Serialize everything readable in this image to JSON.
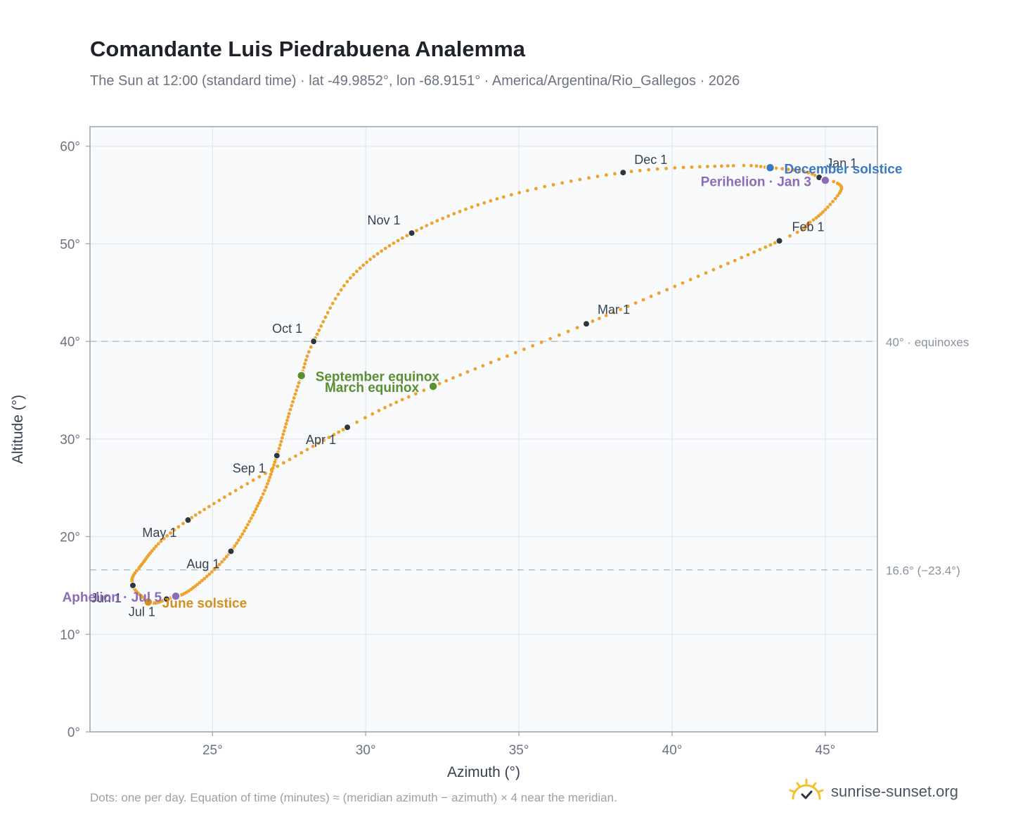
{
  "header": {
    "title": "Comandante Luis Piedrabuena Analemma",
    "subtitle": "The Sun at 12:00 (standard time) · lat -49.9852°, lon -68.9151° · America/Argentina/Rio_Gallegos · 2026"
  },
  "footer": {
    "note": "Dots: one per day. Equation of time (minutes) ≈ (meridian azimuth − azimuth) × 4 near the meridian.",
    "brand": "sunrise-sunset.org",
    "brand_icon": "sun-logo-icon"
  },
  "colors": {
    "curve": "#f0a22a",
    "month_marker": "#2f3640",
    "equinox": "#5a8f32",
    "june_solstice": "#d4901a",
    "december_solstice": "#3b78c4",
    "apsis": "#8c6bb8",
    "reference_line": "#b8bfc7",
    "plot_bg": "#f8fafc"
  },
  "chart_data": {
    "type": "scatter",
    "title": "Comandante Luis Piedrabuena Analemma",
    "xlabel": "Azimuth (°)",
    "ylabel": "Altitude (°)",
    "xlim": [
      21,
      46.7
    ],
    "ylim": [
      0,
      62
    ],
    "x_ticks": [
      25,
      30,
      35,
      40,
      45
    ],
    "x_tick_labels": [
      "25°",
      "30°",
      "35°",
      "40°",
      "45°"
    ],
    "y_ticks": [
      0,
      10,
      20,
      30,
      40,
      50,
      60
    ],
    "y_tick_labels": [
      "0°",
      "10°",
      "20°",
      "30°",
      "40°",
      "50°",
      "60°"
    ],
    "grid": true,
    "reference_lines": [
      {
        "y": 40,
        "label": "40° · equinoxes"
      },
      {
        "y": 16.6,
        "label": "16.6° (−23.4°)"
      }
    ],
    "analemma_anchors": [
      {
        "day": 0,
        "az": 44.8,
        "alt": 56.8
      },
      {
        "day": 4,
        "az": 45.4,
        "alt": 56.2
      },
      {
        "day": 9,
        "az": 45.5,
        "alt": 55.4
      },
      {
        "day": 16,
        "az": 45.0,
        "alt": 53.5
      },
      {
        "day": 22,
        "az": 44.5,
        "alt": 52.2
      },
      {
        "day": 31,
        "az": 43.5,
        "alt": 50.3
      },
      {
        "day": 59,
        "az": 37.2,
        "alt": 41.8
      },
      {
        "day": 78,
        "az": 32.2,
        "alt": 35.4
      },
      {
        "day": 90,
        "az": 29.4,
        "alt": 31.2
      },
      {
        "day": 120,
        "az": 24.2,
        "alt": 21.7
      },
      {
        "day": 140,
        "az": 22.6,
        "alt": 16.8
      },
      {
        "day": 151,
        "az": 22.4,
        "alt": 15.0
      },
      {
        "day": 161,
        "az": 22.8,
        "alt": 13.6
      },
      {
        "day": 171,
        "az": 23.1,
        "alt": 13.2
      },
      {
        "day": 181,
        "az": 23.5,
        "alt": 13.6
      },
      {
        "day": 195,
        "az": 24.3,
        "alt": 14.6
      },
      {
        "day": 212,
        "az": 25.6,
        "alt": 18.5
      },
      {
        "day": 230,
        "az": 26.6,
        "alt": 24.0
      },
      {
        "day": 243,
        "az": 27.1,
        "alt": 28.3
      },
      {
        "day": 255,
        "az": 27.5,
        "alt": 32.6
      },
      {
        "day": 265,
        "az": 27.9,
        "alt": 36.5
      },
      {
        "day": 273,
        "az": 28.3,
        "alt": 40.0
      },
      {
        "day": 288,
        "az": 29.5,
        "alt": 46.5
      },
      {
        "day": 304,
        "az": 31.5,
        "alt": 51.1
      },
      {
        "day": 320,
        "az": 34.5,
        "alt": 54.8
      },
      {
        "day": 334,
        "az": 38.4,
        "alt": 57.3
      },
      {
        "day": 348,
        "az": 42.0,
        "alt": 58.0
      },
      {
        "day": 354,
        "az": 43.2,
        "alt": 57.8
      },
      {
        "day": 360,
        "az": 44.3,
        "alt": 57.4
      },
      {
        "day": 365,
        "az": 44.8,
        "alt": 56.8
      }
    ],
    "month_markers": [
      {
        "label": "Jan 1",
        "az": 44.8,
        "alt": 56.8,
        "anchor": "start",
        "dx": 10,
        "dy": -14
      },
      {
        "label": "Feb 1",
        "az": 43.5,
        "alt": 50.3,
        "anchor": "start",
        "dx": 18,
        "dy": -14
      },
      {
        "label": "Mar 1",
        "az": 37.2,
        "alt": 41.8,
        "anchor": "start",
        "dx": 16,
        "dy": -14
      },
      {
        "label": "Apr 1",
        "az": 29.4,
        "alt": 31.2,
        "anchor": "end",
        "dx": -16,
        "dy": 24
      },
      {
        "label": "May 1",
        "az": 24.2,
        "alt": 21.7,
        "anchor": "end",
        "dx": -16,
        "dy": 24
      },
      {
        "label": "Jun 1",
        "az": 22.4,
        "alt": 15.0,
        "anchor": "end",
        "dx": -16,
        "dy": 24
      },
      {
        "label": "Jul 1",
        "az": 23.5,
        "alt": 13.6,
        "anchor": "end",
        "dx": -16,
        "dy": 24
      },
      {
        "label": "Aug 1",
        "az": 25.6,
        "alt": 18.5,
        "anchor": "end",
        "dx": -16,
        "dy": 24
      },
      {
        "label": "Sep 1",
        "az": 27.1,
        "alt": 28.3,
        "anchor": "end",
        "dx": -16,
        "dy": 24
      },
      {
        "label": "Oct 1",
        "az": 28.3,
        "alt": 40.0,
        "anchor": "end",
        "dx": -16,
        "dy": -12
      },
      {
        "label": "Nov 1",
        "az": 31.5,
        "alt": 51.1,
        "anchor": "end",
        "dx": -16,
        "dy": -12
      },
      {
        "label": "Dec 1",
        "az": 38.4,
        "alt": 57.3,
        "anchor": "start",
        "dx": 16,
        "dy": -12
      }
    ],
    "events": [
      {
        "label": "December solstice",
        "az": 43.2,
        "alt": 57.8,
        "color": "#3b78c4",
        "anchor": "start",
        "dx": 20,
        "dy": 8
      },
      {
        "label": "Perihelion · Jan 3",
        "az": 45.0,
        "alt": 56.5,
        "color": "#8c6bb8",
        "anchor": "end",
        "dx": -20,
        "dy": 8
      },
      {
        "label": "September equinox",
        "az": 27.9,
        "alt": 36.5,
        "color": "#5a8f32",
        "anchor": "start",
        "dx": 20,
        "dy": 8
      },
      {
        "label": "March equinox",
        "az": 32.2,
        "alt": 35.4,
        "color": "#5a8f32",
        "anchor": "end",
        "dx": -20,
        "dy": 8
      },
      {
        "label": "June solstice",
        "az": 22.9,
        "alt": 13.3,
        "color": "#d4901a",
        "anchor": "start",
        "dx": 20,
        "dy": 8
      },
      {
        "label": "Aphelion · Jul 5",
        "az": 23.8,
        "alt": 13.9,
        "color": "#8c6bb8",
        "anchor": "end",
        "dx": -20,
        "dy": 8
      }
    ]
  }
}
